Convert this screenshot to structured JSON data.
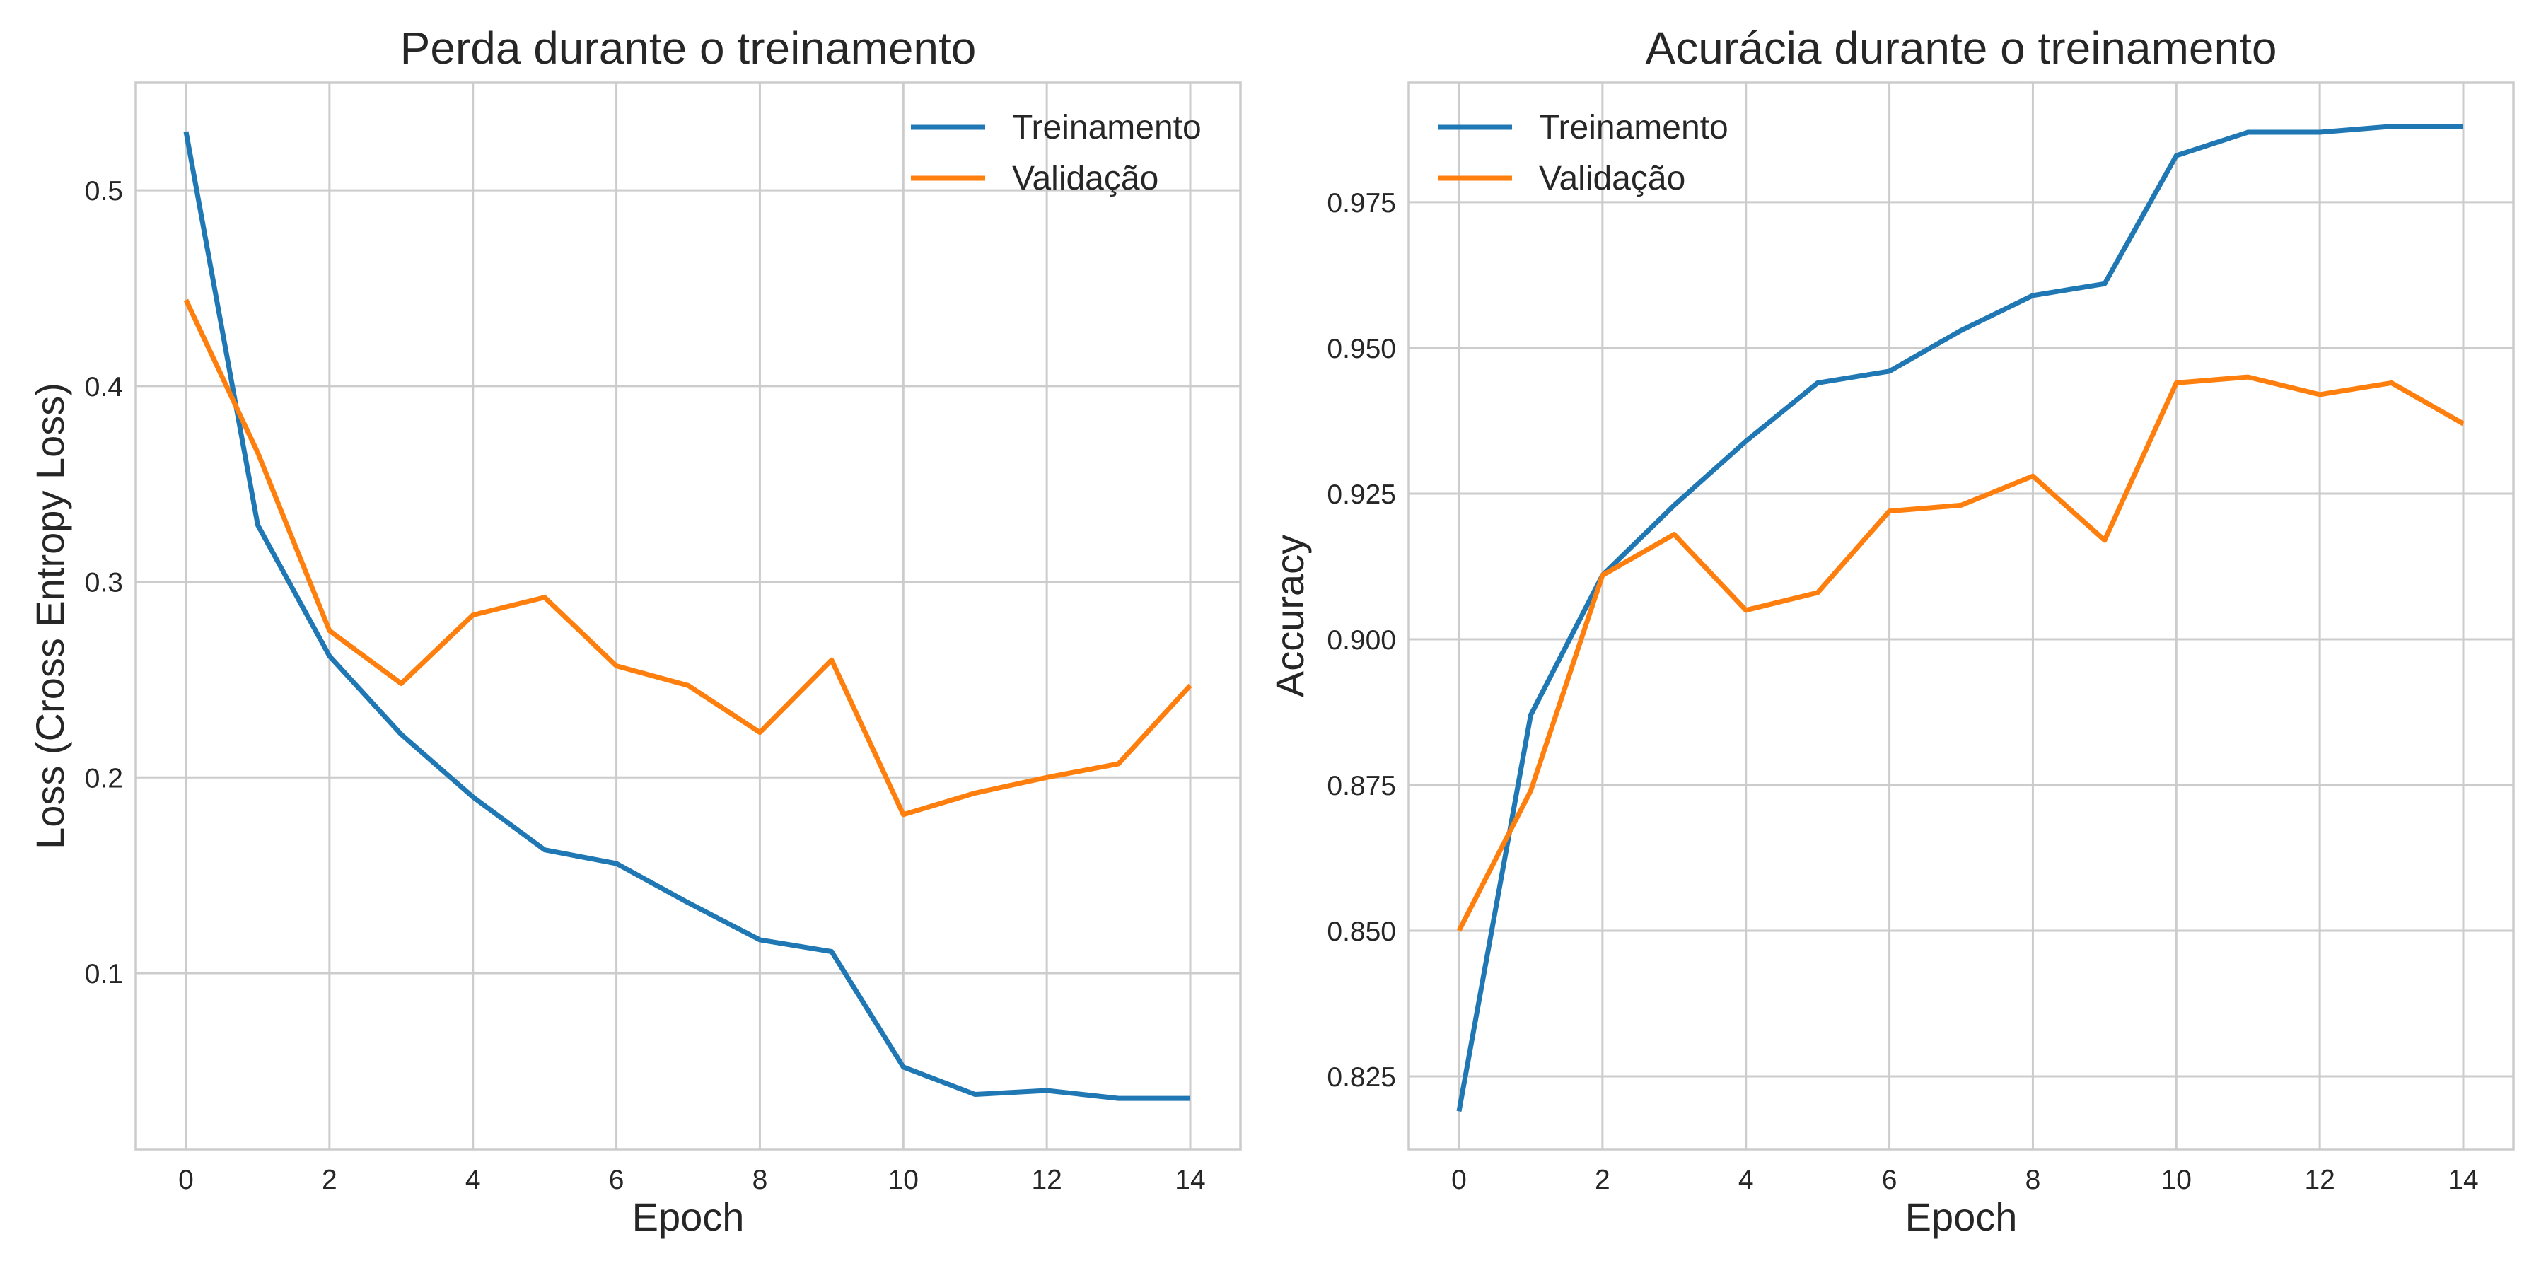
{
  "chart_data": [
    {
      "type": "line",
      "title": "Perda durante o treinamento",
      "xlabel": "Epoch",
      "ylabel": "Loss (Cross Entropy Loss)",
      "x": [
        0,
        1,
        2,
        3,
        4,
        5,
        6,
        7,
        8,
        9,
        10,
        11,
        12,
        13,
        14
      ],
      "xlim": [
        -0.7,
        14.7
      ],
      "ylim": [
        0.01,
        0.555
      ],
      "xticks": [
        0,
        2,
        4,
        6,
        8,
        10,
        12,
        14
      ],
      "yticks": [
        0.1,
        0.2,
        0.3,
        0.4,
        0.5
      ],
      "ytick_labels": [
        "0.1",
        "0.2",
        "0.3",
        "0.4",
        "0.5"
      ],
      "grid": true,
      "legend_position": "top-right",
      "series": [
        {
          "name": "Treinamento",
          "color": "#1f77b4",
          "values": [
            0.53,
            0.329,
            0.262,
            0.222,
            0.19,
            0.163,
            0.156,
            0.136,
            0.117,
            0.111,
            0.052,
            0.038,
            0.04,
            0.036,
            0.036
          ]
        },
        {
          "name": "Validação",
          "color": "#ff7f0e",
          "values": [
            0.444,
            0.366,
            0.275,
            0.248,
            0.283,
            0.292,
            0.257,
            0.247,
            0.223,
            0.26,
            0.181,
            0.192,
            0.2,
            0.207,
            0.247
          ]
        }
      ]
    },
    {
      "type": "line",
      "title": "Acurácia durante o treinamento",
      "xlabel": "Epoch",
      "ylabel": "Accuracy",
      "x": [
        0,
        1,
        2,
        3,
        4,
        5,
        6,
        7,
        8,
        9,
        10,
        11,
        12,
        13,
        14
      ],
      "xlim": [
        -0.7,
        14.7
      ],
      "ylim": [
        0.8125,
        0.9955
      ],
      "xticks": [
        0,
        2,
        4,
        6,
        8,
        10,
        12,
        14
      ],
      "yticks": [
        0.825,
        0.85,
        0.875,
        0.9,
        0.925,
        0.95,
        0.975
      ],
      "ytick_labels": [
        "0.825",
        "0.850",
        "0.875",
        "0.900",
        "0.925",
        "0.950",
        "0.975"
      ],
      "grid": true,
      "legend_position": "top-left",
      "series": [
        {
          "name": "Treinamento",
          "color": "#1f77b4",
          "values": [
            0.819,
            0.887,
            0.911,
            0.923,
            0.934,
            0.944,
            0.946,
            0.953,
            0.959,
            0.961,
            0.983,
            0.987,
            0.987,
            0.988,
            0.988
          ]
        },
        {
          "name": "Validação",
          "color": "#ff7f0e",
          "values": [
            0.85,
            0.874,
            0.911,
            0.918,
            0.905,
            0.908,
            0.922,
            0.923,
            0.928,
            0.917,
            0.944,
            0.945,
            0.942,
            0.944,
            0.937
          ]
        }
      ]
    }
  ]
}
